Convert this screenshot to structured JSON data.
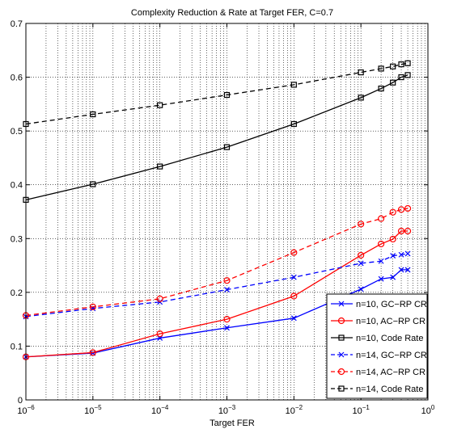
{
  "chart_data": {
    "type": "line",
    "title": "Complexity Reduction & Rate at Target FER, C=0.7",
    "xlabel": "Target FER",
    "ylabel": "",
    "xscale": "log",
    "xlim": [
      1e-06,
      1
    ],
    "ylim": [
      0,
      0.7
    ],
    "grid": true,
    "legend_position": "bottom-right",
    "x_tick_labels": [
      {
        "base": "10",
        "exp": "−6"
      },
      {
        "base": "10",
        "exp": "−5"
      },
      {
        "base": "10",
        "exp": "−4"
      },
      {
        "base": "10",
        "exp": "−3"
      },
      {
        "base": "10",
        "exp": "−2"
      },
      {
        "base": "10",
        "exp": "−1"
      },
      {
        "base": "10",
        "exp": "0"
      }
    ],
    "y_tick_labels": [
      "0",
      "0.1",
      "0.2",
      "0.3",
      "0.4",
      "0.5",
      "0.6",
      "0.7"
    ],
    "series": [
      {
        "name": "n=10, GC−RP CR",
        "color": "#0000ff",
        "dash": "solid",
        "marker": "x",
        "x": [
          1e-06,
          1e-05,
          0.0001,
          0.001,
          0.01,
          0.1,
          0.2,
          0.3,
          0.4,
          0.5
        ],
        "y": [
          0.08,
          0.087,
          0.115,
          0.134,
          0.152,
          0.206,
          0.225,
          0.228,
          0.242,
          0.242
        ]
      },
      {
        "name": "n=10, AC−RP CR",
        "color": "#ff0000",
        "dash": "solid",
        "marker": "circle",
        "x": [
          1e-06,
          1e-05,
          0.0001,
          0.001,
          0.01,
          0.1,
          0.2,
          0.3,
          0.4,
          0.5
        ],
        "y": [
          0.08,
          0.088,
          0.123,
          0.15,
          0.193,
          0.269,
          0.29,
          0.299,
          0.314,
          0.314
        ]
      },
      {
        "name": "n=10, Code Rate",
        "color": "#000000",
        "dash": "solid",
        "marker": "square",
        "x": [
          1e-06,
          1e-05,
          0.0001,
          0.001,
          0.01,
          0.1,
          0.2,
          0.3,
          0.4,
          0.5
        ],
        "y": [
          0.372,
          0.401,
          0.434,
          0.47,
          0.513,
          0.562,
          0.579,
          0.59,
          0.6,
          0.604
        ]
      },
      {
        "name": "n=14, GC−RP CR",
        "color": "#0000ff",
        "dash": "dashed",
        "marker": "x",
        "x": [
          1e-06,
          1e-05,
          0.0001,
          0.001,
          0.01,
          0.1,
          0.2,
          0.3,
          0.4,
          0.5
        ],
        "y": [
          0.155,
          0.17,
          0.182,
          0.205,
          0.228,
          0.254,
          0.258,
          0.268,
          0.27,
          0.272
        ]
      },
      {
        "name": "n=14, AC−RP CR",
        "color": "#ff0000",
        "dash": "dashed",
        "marker": "circle",
        "x": [
          1e-06,
          1e-05,
          0.0001,
          0.001,
          0.01,
          0.1,
          0.2,
          0.3,
          0.4,
          0.5
        ],
        "y": [
          0.157,
          0.173,
          0.188,
          0.222,
          0.274,
          0.327,
          0.337,
          0.349,
          0.354,
          0.356
        ]
      },
      {
        "name": "n=14, Code Rate",
        "color": "#000000",
        "dash": "dashed",
        "marker": "square",
        "x": [
          1e-06,
          1e-05,
          0.0001,
          0.001,
          0.01,
          0.1,
          0.2,
          0.3,
          0.4,
          0.5
        ],
        "y": [
          0.513,
          0.531,
          0.548,
          0.567,
          0.586,
          0.609,
          0.616,
          0.62,
          0.624,
          0.626
        ]
      }
    ]
  }
}
